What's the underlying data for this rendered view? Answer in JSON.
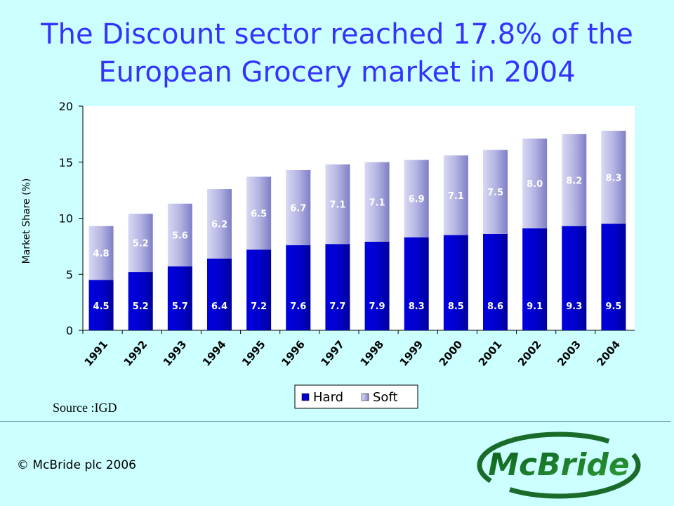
{
  "slide": {
    "title_line1": "The Discount sector reached 17.8% of the",
    "title_line2": "European Grocery market in 2004",
    "source": "Source :IGD",
    "copyright": "© McBride plc 2006",
    "logo_text": "McBride"
  },
  "colors": {
    "background": "#ccffff",
    "title": "#3333ff",
    "hard": "#0000cc",
    "soft": "#b0b0e0",
    "logo": "#2e7d32"
  },
  "chart_data": {
    "type": "bar",
    "stacked": true,
    "title": "",
    "xlabel": "",
    "ylabel": "Market Share (%)",
    "ylim": [
      0,
      20
    ],
    "yticks": [
      0,
      5,
      10,
      15,
      20
    ],
    "grid": false,
    "legend": "bottom",
    "categories": [
      "1991",
      "1992",
      "1993",
      "1994",
      "1995",
      "1996",
      "1997",
      "1998",
      "1999",
      "2000",
      "2001",
      "2002",
      "2003",
      "2004"
    ],
    "series": [
      {
        "name": "Hard",
        "values": [
          4.5,
          5.2,
          5.7,
          6.4,
          7.2,
          7.6,
          7.7,
          7.9,
          8.3,
          8.5,
          8.6,
          9.1,
          9.3,
          9.5
        ]
      },
      {
        "name": "Soft",
        "values": [
          4.8,
          5.2,
          5.6,
          6.2,
          6.5,
          6.7,
          7.1,
          7.1,
          6.9,
          7.1,
          7.5,
          8.0,
          8.2,
          8.3
        ]
      }
    ]
  }
}
